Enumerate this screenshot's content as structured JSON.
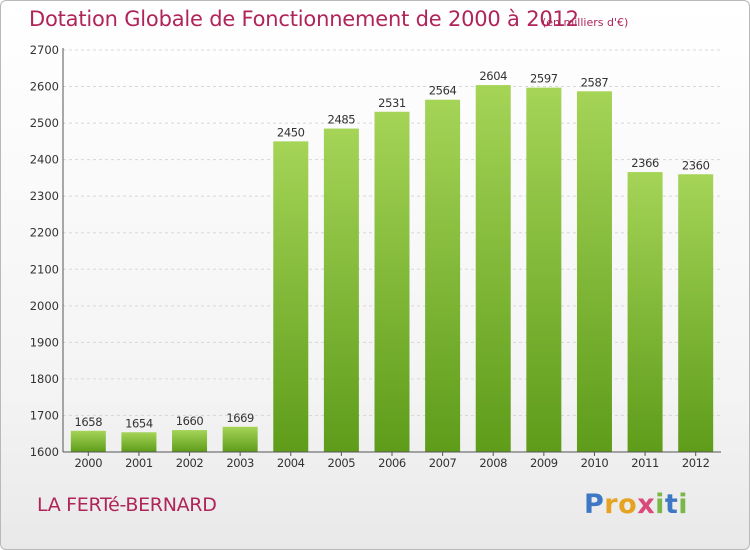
{
  "title": "Dotation Globale de Fonctionnement de 2000 à 2012",
  "units": "(en milliers d'€)",
  "commune": "LA FERTé-BERNARD",
  "brand": {
    "letters": [
      {
        "char": "P",
        "color": "#3d78c4"
      },
      {
        "char": "r",
        "color": "#e6a322"
      },
      {
        "char": "o",
        "color": "#e6a322"
      },
      {
        "char": "x",
        "color": "#d94a7a"
      },
      {
        "char": "i",
        "color": "#7ab648"
      },
      {
        "char": "t",
        "color": "#3d78c4"
      },
      {
        "char": "i",
        "color": "#7ab648"
      }
    ]
  },
  "colors": {
    "title": "#b0245a",
    "bar_top": "#a5d457",
    "bar_bottom": "#5e9c1a",
    "grid": "#d8d8d8",
    "axis": "#555555"
  },
  "chart_data": {
    "type": "bar",
    "categories": [
      "2000",
      "2001",
      "2002",
      "2003",
      "2004",
      "2005",
      "2006",
      "2007",
      "2008",
      "2009",
      "2010",
      "2011",
      "2012"
    ],
    "values": [
      1658,
      1654,
      1660,
      1669,
      2450,
      2485,
      2531,
      2564,
      2604,
      2597,
      2587,
      2366,
      2360
    ],
    "value_labels": [
      "1658",
      "1654",
      "1660",
      "1669",
      "2450",
      "2485",
      "2531",
      "2564",
      "2604",
      "2597",
      "2587",
      "2366",
      "2360"
    ],
    "ylim": [
      1600,
      2700
    ],
    "yticks": [
      1600,
      1700,
      1800,
      1900,
      2000,
      2100,
      2200,
      2300,
      2400,
      2500,
      2600,
      2700
    ],
    "grid": true
  }
}
